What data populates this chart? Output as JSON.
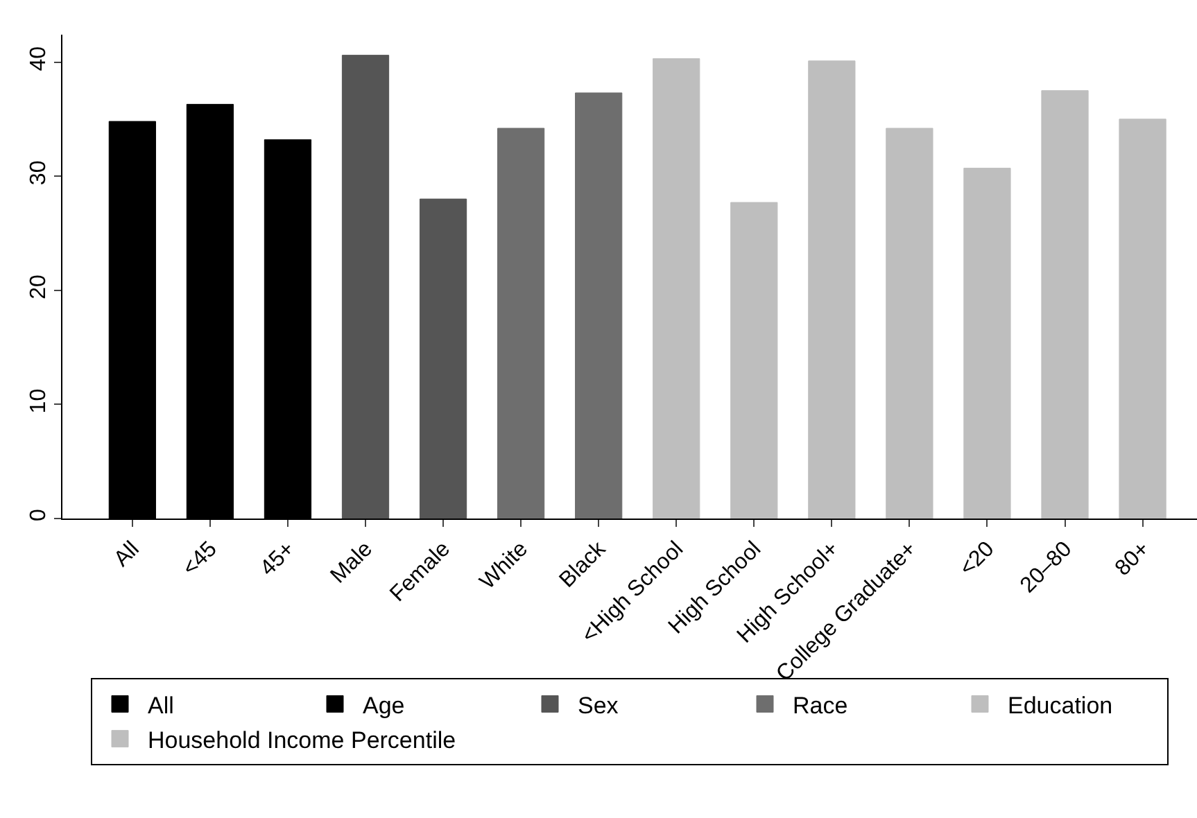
{
  "chart_data": {
    "type": "bar",
    "categories": [
      "All",
      "<45",
      "45+",
      "Male",
      "Female",
      "White",
      "Black",
      "<High School",
      "High School",
      "High School+",
      "College Graduate+",
      "<20",
      "20–80",
      "80+"
    ],
    "series": [
      {
        "name": "All",
        "color": "#000000",
        "values": [
          34.8,
          null,
          null,
          null,
          null,
          null,
          null,
          null,
          null,
          null,
          null,
          null,
          null,
          null
        ]
      },
      {
        "name": "Age",
        "color": "#000000",
        "values": [
          null,
          36.3,
          33.2,
          null,
          null,
          null,
          null,
          null,
          null,
          null,
          null,
          null,
          null,
          null
        ]
      },
      {
        "name": "Sex",
        "color": "#555555",
        "values": [
          null,
          null,
          null,
          40.6,
          28.0,
          null,
          null,
          null,
          null,
          null,
          null,
          null,
          null,
          null
        ]
      },
      {
        "name": "Race",
        "color": "#6e6e6e",
        "values": [
          null,
          null,
          null,
          null,
          null,
          34.2,
          37.3,
          null,
          null,
          null,
          null,
          null,
          null,
          null
        ]
      },
      {
        "name": "Education",
        "color": "#bebebe",
        "values": [
          null,
          null,
          null,
          null,
          null,
          null,
          null,
          40.3,
          27.7,
          40.1,
          34.2,
          null,
          null,
          null
        ]
      },
      {
        "name": "Household Income Percentile",
        "color": "#bebebe",
        "values": [
          null,
          null,
          null,
          null,
          null,
          null,
          null,
          null,
          null,
          null,
          null,
          30.7,
          37.5,
          35.0
        ]
      }
    ],
    "ylim": [
      0,
      42.4
    ],
    "yticks": [
      0,
      10,
      20,
      30,
      40
    ],
    "legend": "bottom"
  }
}
